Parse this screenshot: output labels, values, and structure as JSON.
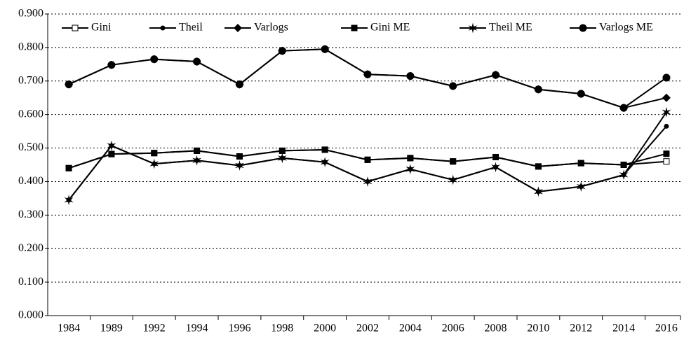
{
  "chart_data": {
    "type": "line",
    "categories": [
      "1984",
      "1989",
      "1992",
      "1994",
      "1996",
      "1998",
      "2000",
      "2002",
      "2004",
      "2006",
      "2008",
      "2010",
      "2012",
      "2014",
      "2016"
    ],
    "ylim": [
      0,
      0.9
    ],
    "yticks": [
      {
        "value": 0,
        "label": "0.000"
      },
      {
        "value": 0.1,
        "label": "0.100"
      },
      {
        "value": 0.2,
        "label": "0.200"
      },
      {
        "value": 0.3,
        "label": "0.300"
      },
      {
        "value": 0.4,
        "label": "0.400"
      },
      {
        "value": 0.5,
        "label": "0.500"
      },
      {
        "value": 0.6,
        "label": "0.600"
      },
      {
        "value": 0.7,
        "label": "0.700"
      },
      {
        "value": 0.8,
        "label": "0.800"
      },
      {
        "value": 0.9,
        "label": "0.900"
      }
    ],
    "grid": true,
    "legend": "top",
    "series": [
      {
        "name": "Gini",
        "color": "#000000",
        "marker": "square-open",
        "values": [
          0.44,
          0.482,
          0.485,
          0.492,
          0.475,
          0.492,
          0.495,
          0.465,
          0.47,
          0.46,
          0.473,
          0.445,
          0.455,
          0.45,
          0.46
        ]
      },
      {
        "name": "Theil",
        "color": "#000000",
        "marker": "circle-small",
        "values": [
          0.345,
          0.507,
          0.453,
          0.463,
          0.448,
          0.47,
          0.458,
          0.4,
          0.437,
          0.405,
          0.443,
          0.37,
          0.385,
          0.42,
          0.565
        ]
      },
      {
        "name": "Varlogs",
        "color": "#000000",
        "marker": "diamond",
        "values": [
          0.69,
          0.748,
          0.765,
          0.758,
          0.69,
          0.79,
          0.795,
          0.72,
          0.715,
          0.685,
          0.718,
          0.675,
          0.662,
          0.62,
          0.65
        ]
      },
      {
        "name": "Gini ME",
        "color": "#000000",
        "marker": "square",
        "values": [
          0.44,
          0.482,
          0.485,
          0.492,
          0.475,
          0.492,
          0.495,
          0.465,
          0.47,
          0.46,
          0.473,
          0.445,
          0.455,
          0.45,
          0.483
        ]
      },
      {
        "name": "Theil ME",
        "color": "#000000",
        "marker": "star",
        "values": [
          0.345,
          0.507,
          0.453,
          0.463,
          0.448,
          0.47,
          0.458,
          0.4,
          0.437,
          0.405,
          0.443,
          0.37,
          0.385,
          0.42,
          0.607
        ]
      },
      {
        "name": "Varlogs ME",
        "color": "#000000",
        "marker": "circle",
        "values": [
          0.69,
          0.748,
          0.765,
          0.758,
          0.69,
          0.79,
          0.795,
          0.72,
          0.715,
          0.685,
          0.718,
          0.675,
          0.662,
          0.62,
          0.71
        ]
      }
    ]
  }
}
